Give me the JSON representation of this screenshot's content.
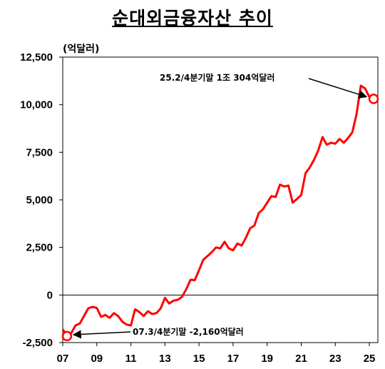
{
  "title": "순대외금융자산 추이",
  "unit_label": "(억달러)",
  "chart_data": {
    "type": "line",
    "title": "순대외금융자산 추이",
    "ylabel": "(억달러)",
    "xlabel": "",
    "ylim": [
      -2500,
      12500
    ],
    "xlim": [
      2007,
      2025.5
    ],
    "yticks": [
      -2500,
      0,
      2500,
      5000,
      7500,
      10000,
      12500
    ],
    "ytick_labels": [
      "-2,500",
      "0",
      "2,500",
      "5,000",
      "7,500",
      "10,000",
      "12,500"
    ],
    "xticks": [
      2007,
      2009,
      2011,
      2013,
      2015,
      2017,
      2019,
      2021,
      2023,
      2025
    ],
    "xtick_labels": [
      "07",
      "09",
      "11",
      "13",
      "15",
      "17",
      "19",
      "21",
      "23",
      "25"
    ],
    "grid": false,
    "series": [
      {
        "color": "#ff0000",
        "x": [
          2007.0,
          2007.25,
          2007.5,
          2007.75,
          2008.0,
          2008.25,
          2008.5,
          2008.75,
          2009.0,
          2009.25,
          2009.5,
          2009.75,
          2010.0,
          2010.25,
          2010.5,
          2010.75,
          2011.0,
          2011.25,
          2011.5,
          2011.75,
          2012.0,
          2012.25,
          2012.5,
          2012.75,
          2013.0,
          2013.25,
          2013.5,
          2013.75,
          2014.0,
          2014.25,
          2014.5,
          2014.75,
          2015.0,
          2015.25,
          2015.5,
          2015.75,
          2016.0,
          2016.25,
          2016.5,
          2016.75,
          2017.0,
          2017.25,
          2017.5,
          2017.75,
          2018.0,
          2018.25,
          2018.5,
          2018.75,
          2019.0,
          2019.25,
          2019.5,
          2019.75,
          2020.0,
          2020.25,
          2020.5,
          2020.75,
          2021.0,
          2021.25,
          2021.5,
          2021.75,
          2022.0,
          2022.25,
          2022.5,
          2022.75,
          2023.0,
          2023.25,
          2023.5,
          2023.75,
          2024.0,
          2024.25,
          2024.5,
          2024.75,
          2025.0,
          2025.25
        ],
        "y": [
          -1800,
          -2160,
          -2000,
          -1600,
          -1500,
          -1100,
          -700,
          -620,
          -680,
          -1150,
          -1050,
          -1200,
          -950,
          -1100,
          -1400,
          -1550,
          -1600,
          -750,
          -900,
          -1100,
          -850,
          -1000,
          -950,
          -700,
          -150,
          -450,
          -300,
          -250,
          -100,
          300,
          800,
          780,
          1300,
          1850,
          2050,
          2250,
          2500,
          2450,
          2800,
          2450,
          2350,
          2700,
          2600,
          3000,
          3500,
          3650,
          4300,
          4500,
          4850,
          5200,
          5150,
          5800,
          5700,
          5750,
          4850,
          5050,
          5250,
          6400,
          6700,
          7100,
          7600,
          8300,
          7900,
          8000,
          7950,
          8200,
          8000,
          8250,
          8550,
          9500,
          11000,
          10850,
          10400,
          10304
        ]
      }
    ],
    "annotations": [
      {
        "text": "25.2/4분기말  1조  304억달러",
        "x": 2025.25,
        "y": 10304
      },
      {
        "text": "07.3/4분기말  -2,160억달러",
        "x": 2007.25,
        "y": -2160
      }
    ]
  }
}
